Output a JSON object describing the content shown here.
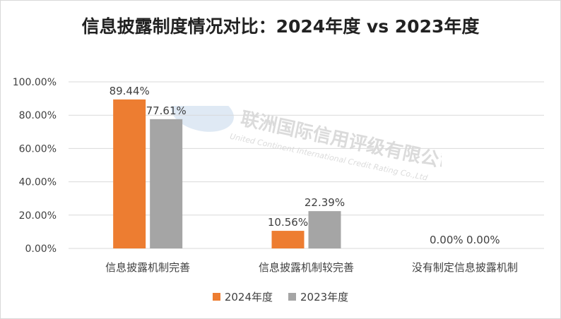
{
  "title": "信息披露制度情况对比：2024年度 vs 2023年度",
  "watermark": {
    "company_cn": "联洲国际信用评级有限公司",
    "company_en": "United Continent International Credit Rating Co.,Ltd"
  },
  "colors": {
    "series_2024": "#ed7d31",
    "series_2023": "#a5a5a5",
    "grid": "#d9d9d9",
    "text": "#404040"
  },
  "chart_data": {
    "type": "bar",
    "title": "信息披露制度情况对比：2024年度 vs 2023年度",
    "categories": [
      "信息披露机制完善",
      "信息披露机制较完善",
      "没有制定信息披露机制"
    ],
    "series": [
      {
        "name": "2024年度",
        "values": [
          89.44,
          10.56,
          0.0
        ],
        "labels": [
          "89.44%",
          "10.56%",
          "0.00%"
        ]
      },
      {
        "name": "2023年度",
        "values": [
          77.61,
          22.39,
          0.0
        ],
        "labels": [
          "77.61%",
          "22.39%",
          "0.00%"
        ]
      }
    ],
    "yticks": [
      "0.00%",
      "20.00%",
      "40.00%",
      "60.00%",
      "80.00%",
      "100.00%"
    ],
    "ylim": [
      0,
      100
    ],
    "grid": true,
    "legend": "bottom",
    "xlabel": "",
    "ylabel": ""
  }
}
